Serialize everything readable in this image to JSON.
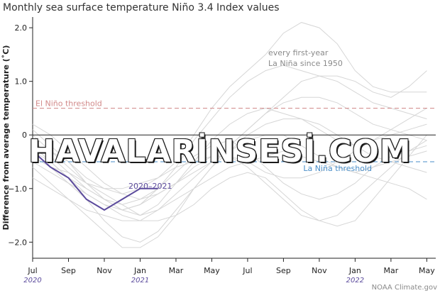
{
  "title": "Monthly sea surface temperature Niño 3.4 Index values",
  "credit": "NOAA Climate.gov",
  "watermark": "HAVALARİNSESİ.COM",
  "colors": {
    "highlight": "#5b4a9c",
    "el_nino": "#d28a8a",
    "la_nina": "#4a8ec8",
    "background_lines": "#d6d6d6",
    "zero_line": "#222222"
  },
  "chart_data": {
    "type": "line",
    "title": "Monthly sea surface temperature Niño 3.4 Index values",
    "ylabel": "Difference from average temperature (˚C)",
    "xlabel": "",
    "ylim": [
      -2.3,
      2.2
    ],
    "xlim": [
      0,
      22.5
    ],
    "yticks": [
      {
        "value": 2.0,
        "label": "2.0"
      },
      {
        "value": 1.0,
        "label": "1.0"
      },
      {
        "value": 0,
        "label": "0"
      },
      {
        "value": -1.0,
        "label": "−1.0"
      },
      {
        "value": -2.0,
        "label": "−2.0"
      }
    ],
    "xticks": [
      {
        "index": 0,
        "label": "Jul",
        "year": "2020"
      },
      {
        "index": 2,
        "label": "Sep",
        "year": ""
      },
      {
        "index": 4,
        "label": "Nov",
        "year": ""
      },
      {
        "index": 6,
        "label": "Jan",
        "year": "2021"
      },
      {
        "index": 8,
        "label": "Mar",
        "year": ""
      },
      {
        "index": 10,
        "label": "May",
        "year": ""
      },
      {
        "index": 12,
        "label": "Jul",
        "year": ""
      },
      {
        "index": 14,
        "label": "Sep",
        "year": ""
      },
      {
        "index": 16,
        "label": "Nov",
        "year": ""
      },
      {
        "index": 18,
        "label": "Jan",
        "year": "2022"
      },
      {
        "index": 20,
        "label": "Mar",
        "year": ""
      },
      {
        "index": 22,
        "label": "May",
        "year": ""
      }
    ],
    "thresholds": [
      {
        "name": "El Niño threshold",
        "value": 0.5
      },
      {
        "name": "La Niña threshold",
        "value": -0.5
      }
    ],
    "annotation": {
      "line1": "every first-year",
      "line2": "La Niña since 1950"
    },
    "highlight_series": {
      "name": "2020–2021",
      "values": [
        -0.3,
        -0.6,
        -0.8,
        -1.2,
        -1.4,
        -1.2,
        -1.0,
        -1.0
      ]
    },
    "background_series": [
      {
        "values": [
          -0.2,
          -0.3,
          -0.5,
          -0.8,
          -1.0,
          -1.1,
          -1.0,
          -0.8,
          -0.5,
          0.0,
          0.5,
          0.9,
          1.2,
          1.5,
          1.9,
          2.1,
          2.0,
          1.7,
          1.2,
          0.9,
          0.8,
          0.8,
          0.8
        ]
      },
      {
        "values": [
          0.1,
          -0.2,
          -0.5,
          -0.9,
          -1.2,
          -1.4,
          -1.3,
          -1.0,
          -0.6,
          -0.1,
          0.3,
          0.7,
          1.0,
          1.2,
          1.3,
          1.2,
          1.1,
          1.0,
          0.8,
          0.6,
          0.5,
          0.4,
          0.3
        ]
      },
      {
        "values": [
          -0.4,
          -0.6,
          -0.9,
          -1.2,
          -1.6,
          -1.9,
          -2.0,
          -1.8,
          -1.4,
          -1.0,
          -0.6,
          -0.2,
          0.1,
          0.4,
          0.6,
          0.7,
          0.7,
          0.6,
          0.4,
          0.2,
          0.1,
          0.0,
          -0.1
        ]
      },
      {
        "values": [
          0.0,
          -0.3,
          -0.6,
          -0.9,
          -1.1,
          -1.3,
          -1.5,
          -1.4,
          -1.1,
          -0.8,
          -0.5,
          -0.2,
          0.1,
          0.4,
          0.7,
          1.0,
          1.1,
          1.1,
          1.0,
          0.8,
          0.7,
          0.9,
          1.2
        ]
      },
      {
        "values": [
          -0.6,
          -0.9,
          -1.2,
          -1.5,
          -1.8,
          -2.1,
          -2.1,
          -1.9,
          -1.5,
          -1.0,
          -0.6,
          -0.3,
          -0.1,
          0.0,
          0.0,
          -0.2,
          -0.4,
          -0.6,
          -0.7,
          -0.6,
          -0.5,
          -0.4,
          -0.3
        ]
      },
      {
        "values": [
          -0.3,
          -0.5,
          -0.8,
          -1.0,
          -1.2,
          -1.4,
          -1.5,
          -1.3,
          -0.9,
          -0.5,
          -0.1,
          0.2,
          0.4,
          0.5,
          0.4,
          0.3,
          0.1,
          -0.1,
          -0.2,
          -0.1,
          0.0,
          0.1,
          0.2
        ]
      },
      {
        "values": [
          0.2,
          0.0,
          -0.3,
          -0.6,
          -0.9,
          -1.1,
          -1.2,
          -1.1,
          -0.9,
          -0.6,
          -0.4,
          -0.4,
          -0.6,
          -0.9,
          -1.2,
          -1.5,
          -1.6,
          -1.5,
          -1.2,
          -0.9,
          -0.6,
          -0.3,
          -0.1
        ]
      },
      {
        "values": [
          -0.5,
          -0.7,
          -0.9,
          -1.1,
          -1.3,
          -1.5,
          -1.6,
          -1.6,
          -1.5,
          -1.3,
          -1.0,
          -0.8,
          -0.7,
          -0.8,
          -1.1,
          -1.4,
          -1.6,
          -1.7,
          -1.6,
          -1.2,
          -0.8,
          -0.4,
          0.0
        ]
      },
      {
        "values": [
          -0.1,
          -0.4,
          -0.7,
          -1.0,
          -1.2,
          -1.3,
          -1.2,
          -1.0,
          -0.7,
          -0.4,
          -0.2,
          -0.1,
          -0.3,
          -0.6,
          -0.9,
          -1.1,
          -1.2,
          -1.1,
          -0.9,
          -0.6,
          -0.4,
          -0.3,
          -0.2
        ]
      },
      {
        "values": [
          -0.8,
          -1.0,
          -1.2,
          -1.4,
          -1.5,
          -1.6,
          -1.6,
          -1.4,
          -1.2,
          -1.0,
          -0.8,
          -0.6,
          -0.5,
          -0.4,
          -0.3,
          -0.4,
          -0.5,
          -0.6,
          -0.7,
          -0.8,
          -0.9,
          -1.0,
          -1.2
        ]
      },
      {
        "values": [
          -0.2,
          -0.5,
          -0.8,
          -1.1,
          -1.3,
          -1.4,
          -1.3,
          -1.1,
          -0.9,
          -0.7,
          -0.5,
          -0.3,
          0.0,
          0.2,
          0.3,
          0.3,
          0.2,
          0.0,
          -0.2,
          -0.4,
          -0.5,
          -0.6,
          -0.7
        ]
      },
      {
        "values": [
          -0.4,
          -0.6,
          -0.7,
          -0.9,
          -1.0,
          -1.0,
          -0.9,
          -0.8,
          -0.6,
          -0.5,
          -0.4,
          -0.4,
          -0.5,
          -0.7,
          -0.8,
          -0.8,
          -0.7,
          -0.5,
          -0.3,
          -0.1,
          0.1,
          0.3,
          0.5
        ]
      }
    ]
  }
}
